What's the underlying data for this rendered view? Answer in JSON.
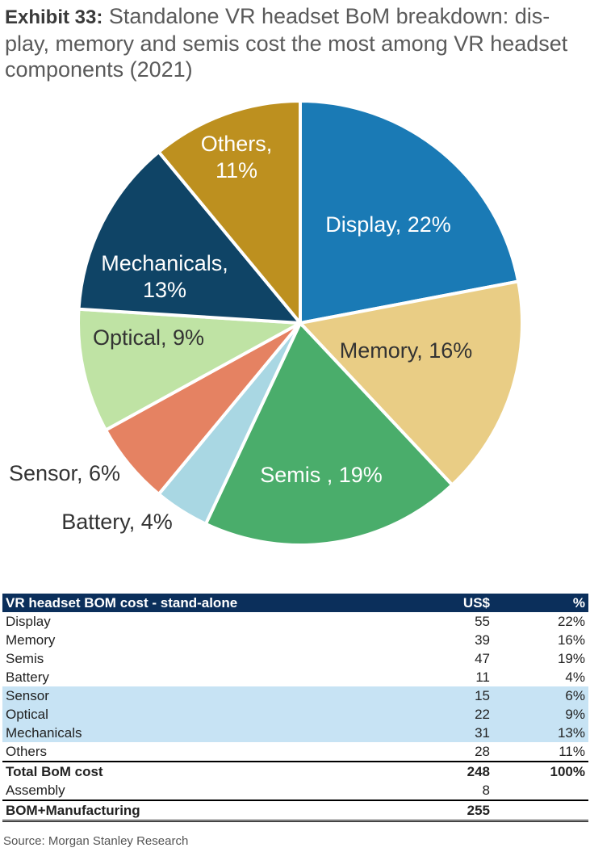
{
  "title": {
    "label": "Exhibit 33:",
    "text": "Standalone VR headset BoM breakdown: dis-play, memory and semis cost the most among VR headset components (2021)"
  },
  "chart_data": {
    "type": "pie",
    "slices": [
      {
        "name": "Display",
        "value": 22,
        "label_line1": "Display, 22%",
        "label_line2": "",
        "color": "#1a7ab5"
      },
      {
        "name": "Memory",
        "value": 16,
        "label_line1": "Memory, 16%",
        "label_line2": "",
        "color": "#e9cd85"
      },
      {
        "name": "Semis",
        "value": 19,
        "label_line1": "Semis , 19%",
        "label_line2": "",
        "color": "#4aad6b"
      },
      {
        "name": "Battery",
        "value": 4,
        "label_line1": "Battery, 4%",
        "label_line2": "",
        "color": "#a9d7e3"
      },
      {
        "name": "Sensor",
        "value": 6,
        "label_line1": "Sensor, 6%",
        "label_line2": "",
        "color": "#e58262"
      },
      {
        "name": "Optical",
        "value": 9,
        "label_line1": "Optical, 9%",
        "label_line2": "",
        "color": "#bfe3a4"
      },
      {
        "name": "Mechanicals",
        "value": 13,
        "label_line1": "Mechanicals,",
        "label_line2": "13%",
        "color": "#0f4466"
      },
      {
        "name": "Others",
        "value": 11,
        "label_line1": "Others,",
        "label_line2": "11%",
        "color": "#bd901f"
      }
    ],
    "start_angle_deg": 0,
    "direction": "clockwise"
  },
  "table": {
    "header": {
      "item": "VR headset BOM cost - stand-alone",
      "usd": "US$",
      "pct": "%"
    },
    "rows": [
      {
        "item": "Display",
        "usd": "55",
        "pct": "22%",
        "highlight": false
      },
      {
        "item": "Memory",
        "usd": "39",
        "pct": "16%",
        "highlight": false
      },
      {
        "item": "Semis",
        "usd": "47",
        "pct": "19%",
        "highlight": false
      },
      {
        "item": "Battery",
        "usd": "11",
        "pct": "4%",
        "highlight": false
      },
      {
        "item": "Sensor",
        "usd": "15",
        "pct": "6%",
        "highlight": true
      },
      {
        "item": "Optical",
        "usd": "22",
        "pct": "9%",
        "highlight": true
      },
      {
        "item": "Mechanicals",
        "usd": "31",
        "pct": "13%",
        "highlight": true
      },
      {
        "item": "Others",
        "usd": "28",
        "pct": "11%",
        "highlight": false
      }
    ],
    "total": {
      "item": "Total BoM cost",
      "usd": "248",
      "pct": "100%"
    },
    "assembly": {
      "item": "Assembly",
      "usd": "8",
      "pct": ""
    },
    "final": {
      "item": "BOM+Manufacturing",
      "usd": "255",
      "pct": ""
    }
  },
  "source": "Source: Morgan Stanley Research"
}
